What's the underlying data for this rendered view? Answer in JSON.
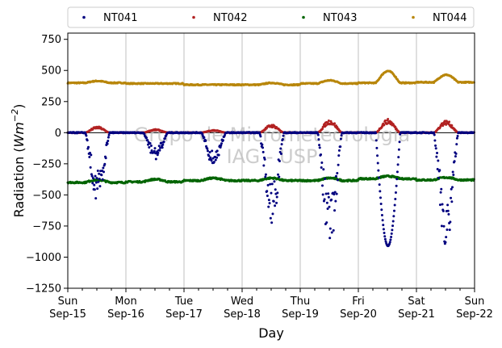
{
  "chart_data": {
    "type": "scatter",
    "title": "",
    "xlabel": "Day",
    "ylabel_prefix": "Radiation (",
    "ylabel_unit": "Wm",
    "ylabel_exp": "−2",
    "ylabel_suffix": ")",
    "ylim": [
      -1250,
      800
    ],
    "yticks": [
      750,
      500,
      250,
      0,
      -250,
      -500,
      -750,
      -1000,
      -1250
    ],
    "ytick_labels": [
      "750",
      "500",
      "250",
      "0",
      "−250",
      "−500",
      "−750",
      "−1000",
      "−1250"
    ],
    "xlim": [
      0,
      7
    ],
    "xticks": [
      0,
      1,
      2,
      3,
      4,
      5,
      6,
      7
    ],
    "xtick_labels_day": [
      "Sun",
      "Mon",
      "Tue",
      "Wed",
      "Thu",
      "Fri",
      "Sat",
      "Sun"
    ],
    "xtick_labels_date": [
      "Sep-15",
      "Sep-16",
      "Sep-17",
      "Sep-18",
      "Sep-19",
      "Sep-20",
      "Sep-21",
      "Sep-22"
    ],
    "grid_x": true,
    "zero_line": true,
    "legend_position": "top, outside, 4 columns",
    "watermark": [
      "Grupo de Micrometeorologia",
      "IAG - USP"
    ],
    "series": [
      {
        "name": "NT041",
        "color": "#00007f"
      },
      {
        "name": "NT042",
        "color": "#b22222"
      },
      {
        "name": "NT043",
        "color": "#006400"
      },
      {
        "name": "NT044",
        "color": "#b8860b"
      }
    ],
    "daily": {
      "nt041_min": [
        -520,
        -210,
        -260,
        -700,
        -870,
        -910,
        -900
      ],
      "nt042_max": [
        45,
        25,
        20,
        60,
        95,
        100,
        90
      ],
      "nt043_level": [
        -400,
        -395,
        -385,
        -385,
        -385,
        -370,
        -380
      ],
      "nt044_level": [
        400,
        395,
        385,
        385,
        395,
        400,
        405
      ],
      "nt044_peak": [
        15,
        0,
        0,
        15,
        25,
        95,
        60
      ]
    }
  }
}
